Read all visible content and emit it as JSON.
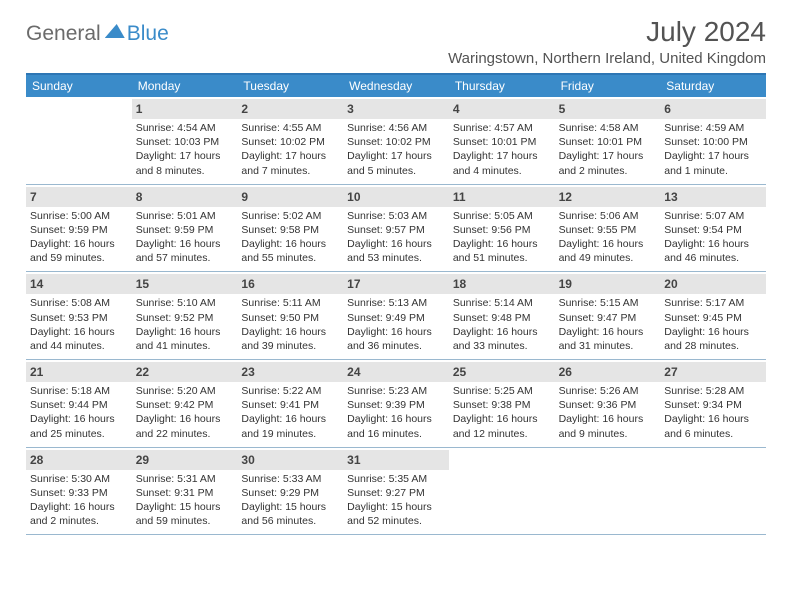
{
  "brand": {
    "part1": "General",
    "part2": "Blue"
  },
  "title": "July 2024",
  "location": "Waringstown, Northern Ireland, United Kingdom",
  "colors": {
    "header_bg": "#3a8bc9",
    "header_border": "#2d76b4",
    "daynum_bg": "#e5e5e5",
    "cell_border": "#9ab8cf",
    "text": "#333333",
    "title": "#535353"
  },
  "weekdays": [
    "Sunday",
    "Monday",
    "Tuesday",
    "Wednesday",
    "Thursday",
    "Friday",
    "Saturday"
  ],
  "weeks": [
    [
      null,
      {
        "n": "1",
        "sr": "Sunrise: 4:54 AM",
        "ss": "Sunset: 10:03 PM",
        "dl": "Daylight: 17 hours and 8 minutes."
      },
      {
        "n": "2",
        "sr": "Sunrise: 4:55 AM",
        "ss": "Sunset: 10:02 PM",
        "dl": "Daylight: 17 hours and 7 minutes."
      },
      {
        "n": "3",
        "sr": "Sunrise: 4:56 AM",
        "ss": "Sunset: 10:02 PM",
        "dl": "Daylight: 17 hours and 5 minutes."
      },
      {
        "n": "4",
        "sr": "Sunrise: 4:57 AM",
        "ss": "Sunset: 10:01 PM",
        "dl": "Daylight: 17 hours and 4 minutes."
      },
      {
        "n": "5",
        "sr": "Sunrise: 4:58 AM",
        "ss": "Sunset: 10:01 PM",
        "dl": "Daylight: 17 hours and 2 minutes."
      },
      {
        "n": "6",
        "sr": "Sunrise: 4:59 AM",
        "ss": "Sunset: 10:00 PM",
        "dl": "Daylight: 17 hours and 1 minute."
      }
    ],
    [
      {
        "n": "7",
        "sr": "Sunrise: 5:00 AM",
        "ss": "Sunset: 9:59 PM",
        "dl": "Daylight: 16 hours and 59 minutes."
      },
      {
        "n": "8",
        "sr": "Sunrise: 5:01 AM",
        "ss": "Sunset: 9:59 PM",
        "dl": "Daylight: 16 hours and 57 minutes."
      },
      {
        "n": "9",
        "sr": "Sunrise: 5:02 AM",
        "ss": "Sunset: 9:58 PM",
        "dl": "Daylight: 16 hours and 55 minutes."
      },
      {
        "n": "10",
        "sr": "Sunrise: 5:03 AM",
        "ss": "Sunset: 9:57 PM",
        "dl": "Daylight: 16 hours and 53 minutes."
      },
      {
        "n": "11",
        "sr": "Sunrise: 5:05 AM",
        "ss": "Sunset: 9:56 PM",
        "dl": "Daylight: 16 hours and 51 minutes."
      },
      {
        "n": "12",
        "sr": "Sunrise: 5:06 AM",
        "ss": "Sunset: 9:55 PM",
        "dl": "Daylight: 16 hours and 49 minutes."
      },
      {
        "n": "13",
        "sr": "Sunrise: 5:07 AM",
        "ss": "Sunset: 9:54 PM",
        "dl": "Daylight: 16 hours and 46 minutes."
      }
    ],
    [
      {
        "n": "14",
        "sr": "Sunrise: 5:08 AM",
        "ss": "Sunset: 9:53 PM",
        "dl": "Daylight: 16 hours and 44 minutes."
      },
      {
        "n": "15",
        "sr": "Sunrise: 5:10 AM",
        "ss": "Sunset: 9:52 PM",
        "dl": "Daylight: 16 hours and 41 minutes."
      },
      {
        "n": "16",
        "sr": "Sunrise: 5:11 AM",
        "ss": "Sunset: 9:50 PM",
        "dl": "Daylight: 16 hours and 39 minutes."
      },
      {
        "n": "17",
        "sr": "Sunrise: 5:13 AM",
        "ss": "Sunset: 9:49 PM",
        "dl": "Daylight: 16 hours and 36 minutes."
      },
      {
        "n": "18",
        "sr": "Sunrise: 5:14 AM",
        "ss": "Sunset: 9:48 PM",
        "dl": "Daylight: 16 hours and 33 minutes."
      },
      {
        "n": "19",
        "sr": "Sunrise: 5:15 AM",
        "ss": "Sunset: 9:47 PM",
        "dl": "Daylight: 16 hours and 31 minutes."
      },
      {
        "n": "20",
        "sr": "Sunrise: 5:17 AM",
        "ss": "Sunset: 9:45 PM",
        "dl": "Daylight: 16 hours and 28 minutes."
      }
    ],
    [
      {
        "n": "21",
        "sr": "Sunrise: 5:18 AM",
        "ss": "Sunset: 9:44 PM",
        "dl": "Daylight: 16 hours and 25 minutes."
      },
      {
        "n": "22",
        "sr": "Sunrise: 5:20 AM",
        "ss": "Sunset: 9:42 PM",
        "dl": "Daylight: 16 hours and 22 minutes."
      },
      {
        "n": "23",
        "sr": "Sunrise: 5:22 AM",
        "ss": "Sunset: 9:41 PM",
        "dl": "Daylight: 16 hours and 19 minutes."
      },
      {
        "n": "24",
        "sr": "Sunrise: 5:23 AM",
        "ss": "Sunset: 9:39 PM",
        "dl": "Daylight: 16 hours and 16 minutes."
      },
      {
        "n": "25",
        "sr": "Sunrise: 5:25 AM",
        "ss": "Sunset: 9:38 PM",
        "dl": "Daylight: 16 hours and 12 minutes."
      },
      {
        "n": "26",
        "sr": "Sunrise: 5:26 AM",
        "ss": "Sunset: 9:36 PM",
        "dl": "Daylight: 16 hours and 9 minutes."
      },
      {
        "n": "27",
        "sr": "Sunrise: 5:28 AM",
        "ss": "Sunset: 9:34 PM",
        "dl": "Daylight: 16 hours and 6 minutes."
      }
    ],
    [
      {
        "n": "28",
        "sr": "Sunrise: 5:30 AM",
        "ss": "Sunset: 9:33 PM",
        "dl": "Daylight: 16 hours and 2 minutes."
      },
      {
        "n": "29",
        "sr": "Sunrise: 5:31 AM",
        "ss": "Sunset: 9:31 PM",
        "dl": "Daylight: 15 hours and 59 minutes."
      },
      {
        "n": "30",
        "sr": "Sunrise: 5:33 AM",
        "ss": "Sunset: 9:29 PM",
        "dl": "Daylight: 15 hours and 56 minutes."
      },
      {
        "n": "31",
        "sr": "Sunrise: 5:35 AM",
        "ss": "Sunset: 9:27 PM",
        "dl": "Daylight: 15 hours and 52 minutes."
      },
      null,
      null,
      null
    ]
  ]
}
